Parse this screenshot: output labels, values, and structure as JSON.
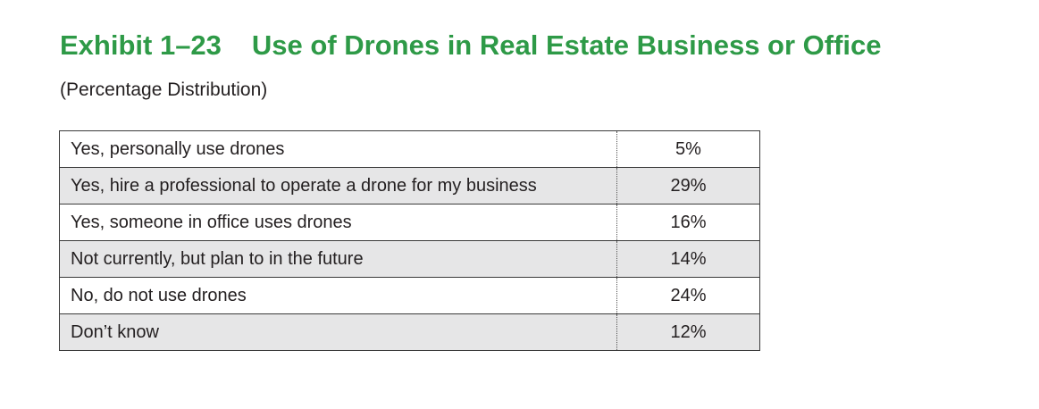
{
  "title": {
    "number": "Exhibit 1–23",
    "text": "Use of Drones in Real Estate Business or Office"
  },
  "subtitle": "(Percentage Distribution)",
  "table": {
    "rows": [
      {
        "label": "Yes, personally use drones",
        "value": "5%"
      },
      {
        "label": "Yes, hire a professional to operate a drone for my business",
        "value": "29%"
      },
      {
        "label": "Yes, someone in office uses drones",
        "value": "16%"
      },
      {
        "label": "Not currently, but plan to in the future",
        "value": "14%"
      },
      {
        "label": "No, do not use drones",
        "value": "24%"
      },
      {
        "label": "Don’t know",
        "value": "12%"
      }
    ]
  },
  "colors": {
    "title": "#2e9a47",
    "row_shade": "#e6e6e7",
    "text": "#231f20"
  }
}
